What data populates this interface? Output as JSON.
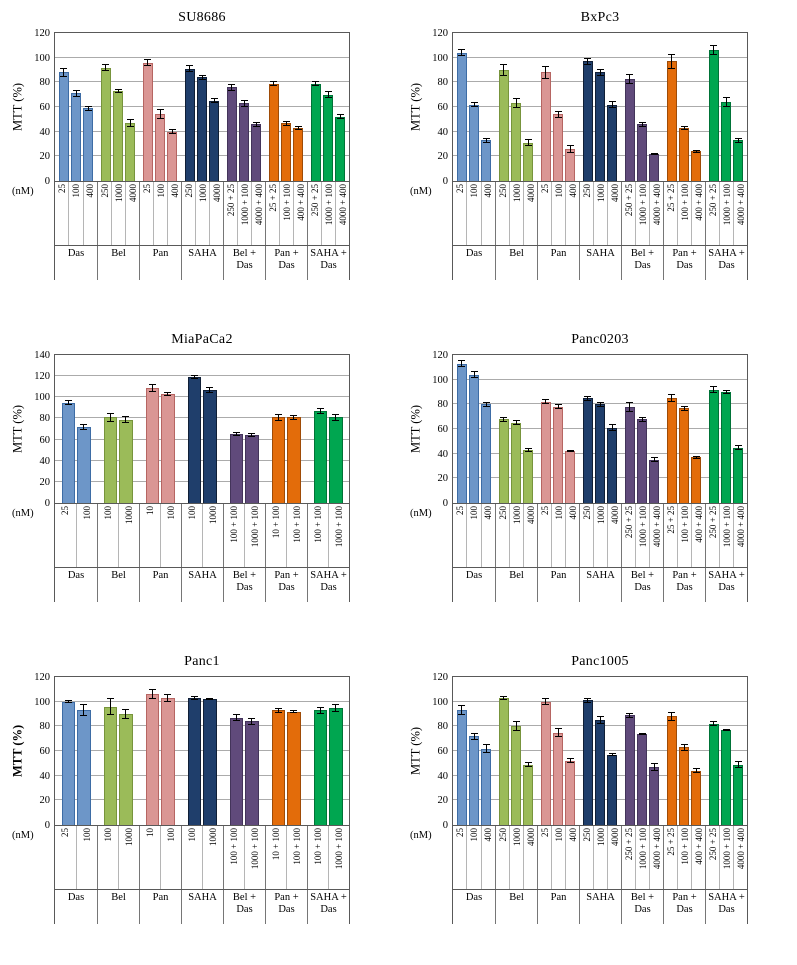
{
  "figure": {
    "x_axis_unit": "(nM)",
    "y_axis_label": "MTT (%)",
    "palette": {
      "Das": {
        "fill": "#6D96C8",
        "border": "#3D6CA5"
      },
      "Bel": {
        "fill": "#9BBB59",
        "border": "#77943C"
      },
      "Pan": {
        "fill": "#DA9694",
        "border": "#B66562"
      },
      "SAHA": {
        "fill": "#1F3E6B",
        "border": "#101F36"
      },
      "Bel + Das": {
        "fill": "#604A7B",
        "border": "#43345A"
      },
      "Pan + Das": {
        "fill": "#E36C0A",
        "border": "#9E4B07"
      },
      "SAHA + Das": {
        "fill": "#00A650",
        "border": "#007337"
      }
    }
  },
  "chart_data": [
    {
      "type": "bar",
      "title": "SU8686",
      "ylabel": "MTT (%)",
      "ylabel_bold": false,
      "xunit": "(nM)",
      "ylim": [
        0,
        120
      ],
      "ytick_step": 20,
      "grid": true,
      "legend": "none",
      "groups": [
        {
          "label": "Das",
          "ticks": [
            "25",
            "100",
            "400"
          ],
          "values": [
            88,
            71,
            59
          ],
          "errors": [
            4,
            3,
            2
          ]
        },
        {
          "label": "Bel",
          "ticks": [
            "250",
            "1000",
            "4000"
          ],
          "values": [
            92,
            73,
            47
          ],
          "errors": [
            3,
            2,
            3
          ]
        },
        {
          "label": "Pan",
          "ticks": [
            "25",
            "100",
            "400"
          ],
          "values": [
            96,
            54,
            40
          ],
          "errors": [
            3,
            4,
            2
          ]
        },
        {
          "label": "SAHA",
          "ticks": [
            "250",
            "1000",
            "4000"
          ],
          "values": [
            91,
            84,
            65
          ],
          "errors": [
            3,
            2,
            2
          ]
        },
        {
          "label": "Bel + Das",
          "ticks": [
            "250 + 25",
            "1000 + 100",
            "4000 + 400"
          ],
          "values": [
            76,
            63,
            46
          ],
          "errors": [
            3,
            3,
            2
          ]
        },
        {
          "label": "Pan + Das",
          "ticks": [
            "25 + 25",
            "100 + 100",
            "400 + 400"
          ],
          "values": [
            79,
            47,
            43
          ],
          "errors": [
            2,
            2,
            2
          ]
        },
        {
          "label": "SAHA + Das",
          "ticks": [
            "250 + 25",
            "1000 + 100",
            "4000 + 400"
          ],
          "values": [
            79,
            70,
            52
          ],
          "errors": [
            2,
            3,
            2
          ]
        }
      ]
    },
    {
      "type": "bar",
      "title": "BxPc3",
      "ylabel": "MTT (%)",
      "ylabel_bold": false,
      "xunit": "(nM)",
      "ylim": [
        0,
        120
      ],
      "ytick_step": 20,
      "grid": true,
      "legend": "none",
      "groups": [
        {
          "label": "Das",
          "ticks": [
            "25",
            "100",
            "400"
          ],
          "values": [
            104,
            62,
            33
          ],
          "errors": [
            3,
            2,
            2
          ]
        },
        {
          "label": "Bel",
          "ticks": [
            "250",
            "1000",
            "4000"
          ],
          "values": [
            90,
            63,
            31
          ],
          "errors": [
            5,
            4,
            3
          ]
        },
        {
          "label": "Pan",
          "ticks": [
            "25",
            "100",
            "400"
          ],
          "values": [
            88,
            54,
            26
          ],
          "errors": [
            5,
            3,
            3
          ]
        },
        {
          "label": "SAHA",
          "ticks": [
            "250",
            "1000",
            "4000"
          ],
          "values": [
            97,
            88,
            62
          ],
          "errors": [
            3,
            3,
            3
          ]
        },
        {
          "label": "Bel + Das",
          "ticks": [
            "250 + 25",
            "1000 + 100",
            "4000 + 400"
          ],
          "values": [
            83,
            46,
            22
          ],
          "errors": [
            4,
            2,
            1
          ]
        },
        {
          "label": "Pan + Das",
          "ticks": [
            "25 + 25",
            "100 + 100",
            "400 + 400"
          ],
          "values": [
            97,
            43,
            24
          ],
          "errors": [
            6,
            2,
            1
          ]
        },
        {
          "label": "SAHA + Das",
          "ticks": [
            "250 + 25",
            "1000 + 100",
            "4000 + 400"
          ],
          "values": [
            106,
            64,
            33
          ],
          "errors": [
            4,
            4,
            2
          ]
        }
      ]
    },
    {
      "type": "bar",
      "title": "MiaPaCa2",
      "ylabel": "MTT (%)",
      "ylabel_bold": false,
      "xunit": "(nM)",
      "ylim": [
        0,
        140
      ],
      "ytick_step": 20,
      "grid": true,
      "legend": "none",
      "groups": [
        {
          "label": "Das",
          "ticks": [
            "25",
            "100"
          ],
          "values": [
            95,
            72
          ],
          "errors": [
            2,
            3
          ]
        },
        {
          "label": "Bel",
          "ticks": [
            "100",
            "1000"
          ],
          "values": [
            81,
            79
          ],
          "errors": [
            4,
            3
          ]
        },
        {
          "label": "Pan",
          "ticks": [
            "10",
            "100"
          ],
          "values": [
            109,
            103
          ],
          "errors": [
            4,
            2
          ]
        },
        {
          "label": "SAHA",
          "ticks": [
            "100",
            "1000"
          ],
          "values": [
            119,
            107
          ],
          "errors": [
            2,
            3
          ]
        },
        {
          "label": "Bel + Das",
          "ticks": [
            "100 + 100",
            "1000 + 100"
          ],
          "values": [
            65,
            64
          ],
          "errors": [
            2,
            2
          ]
        },
        {
          "label": "Pan + Das",
          "ticks": [
            "10 + 100",
            "100 + 100"
          ],
          "values": [
            81,
            81
          ],
          "errors": [
            3,
            2
          ]
        },
        {
          "label": "SAHA + Das",
          "ticks": [
            "100 + 100",
            "1000 + 100"
          ],
          "values": [
            87,
            81
          ],
          "errors": [
            3,
            3
          ]
        }
      ]
    },
    {
      "type": "bar",
      "title": "Panc0203",
      "ylabel": "MTT (%)",
      "ylabel_bold": false,
      "xunit": "(nM)",
      "ylim": [
        0,
        120
      ],
      "ytick_step": 20,
      "grid": true,
      "legend": "none",
      "groups": [
        {
          "label": "Das",
          "ticks": [
            "25",
            "100",
            "400"
          ],
          "values": [
            113,
            104,
            80
          ],
          "errors": [
            3,
            3,
            2
          ]
        },
        {
          "label": "Bel",
          "ticks": [
            "250",
            "1000",
            "4000"
          ],
          "values": [
            68,
            65,
            43
          ],
          "errors": [
            2,
            2,
            2
          ]
        },
        {
          "label": "Pan",
          "ticks": [
            "25",
            "100",
            "400"
          ],
          "values": [
            82,
            78,
            42
          ],
          "errors": [
            2,
            2,
            1
          ]
        },
        {
          "label": "SAHA",
          "ticks": [
            "250",
            "1000",
            "4000"
          ],
          "values": [
            85,
            80,
            61
          ],
          "errors": [
            2,
            2,
            3
          ]
        },
        {
          "label": "Bel + Das",
          "ticks": [
            "250 + 25",
            "1000 + 100",
            "4000 + 400"
          ],
          "values": [
            78,
            68,
            35
          ],
          "errors": [
            4,
            2,
            2
          ]
        },
        {
          "label": "Pan + Das",
          "ticks": [
            "25 + 25",
            "100 + 100",
            "400 + 400"
          ],
          "values": [
            85,
            77,
            37
          ],
          "errors": [
            3,
            2,
            1
          ]
        },
        {
          "label": "SAHA + Das",
          "ticks": [
            "250 + 25",
            "1000 + 100",
            "4000 + 400"
          ],
          "values": [
            92,
            90,
            45
          ],
          "errors": [
            3,
            2,
            2
          ]
        }
      ]
    },
    {
      "type": "bar",
      "title": "Panc1",
      "ylabel": "MTT (%)",
      "ylabel_bold": true,
      "xunit": "(nM)",
      "ylim": [
        0,
        120
      ],
      "ytick_step": 20,
      "grid": true,
      "legend": "none",
      "groups": [
        {
          "label": "Das",
          "ticks": [
            "25",
            "100"
          ],
          "values": [
            100,
            93
          ],
          "errors": [
            1,
            5
          ]
        },
        {
          "label": "Bel",
          "ticks": [
            "100",
            "1000"
          ],
          "values": [
            96,
            90
          ],
          "errors": [
            7,
            4
          ]
        },
        {
          "label": "Pan",
          "ticks": [
            "10",
            "100"
          ],
          "values": [
            106,
            103
          ],
          "errors": [
            4,
            3
          ]
        },
        {
          "label": "SAHA",
          "ticks": [
            "100",
            "1000"
          ],
          "values": [
            103,
            102
          ],
          "errors": [
            2,
            1
          ]
        },
        {
          "label": "Bel + Das",
          "ticks": [
            "100 + 100",
            "1000 + 100"
          ],
          "values": [
            87,
            84
          ],
          "errors": [
            3,
            3
          ]
        },
        {
          "label": "Pan + Das",
          "ticks": [
            "10 + 100",
            "100 + 100"
          ],
          "values": [
            93,
            92
          ],
          "errors": [
            2,
            1
          ]
        },
        {
          "label": "SAHA + Das",
          "ticks": [
            "100 + 100",
            "1000 + 100"
          ],
          "values": [
            93,
            95
          ],
          "errors": [
            3,
            3
          ]
        }
      ]
    },
    {
      "type": "bar",
      "title": "Panc1005",
      "ylabel": "MTT (%)",
      "ylabel_bold": false,
      "xunit": "(nM)",
      "ylim": [
        0,
        120
      ],
      "ytick_step": 20,
      "grid": true,
      "legend": "none",
      "groups": [
        {
          "label": "Das",
          "ticks": [
            "25",
            "100",
            "400"
          ],
          "values": [
            93,
            72,
            62
          ],
          "errors": [
            4,
            3,
            4
          ]
        },
        {
          "label": "Bel",
          "ticks": [
            "250",
            "1000",
            "4000"
          ],
          "values": [
            103,
            80,
            49
          ],
          "errors": [
            2,
            4,
            2
          ]
        },
        {
          "label": "Pan",
          "ticks": [
            "25",
            "100",
            "400"
          ],
          "values": [
            100,
            75,
            52
          ],
          "errors": [
            3,
            4,
            2
          ]
        },
        {
          "label": "SAHA",
          "ticks": [
            "250",
            "1000",
            "4000"
          ],
          "values": [
            101,
            85,
            57
          ],
          "errors": [
            2,
            3,
            1
          ]
        },
        {
          "label": "Bel + Das",
          "ticks": [
            "250 + 25",
            "1000 + 100",
            "4000 + 400"
          ],
          "values": [
            89,
            74,
            47
          ],
          "errors": [
            2,
            1,
            3
          ]
        },
        {
          "label": "Pan + Das",
          "ticks": [
            "25 + 25",
            "100 + 100",
            "400 + 400"
          ],
          "values": [
            88,
            63,
            44
          ],
          "errors": [
            4,
            3,
            2
          ]
        },
        {
          "label": "SAHA + Das",
          "ticks": [
            "250 + 25",
            "1000 + 100",
            "4000 + 400"
          ],
          "values": [
            82,
            77,
            49
          ],
          "errors": [
            2,
            1,
            3
          ]
        }
      ]
    }
  ]
}
